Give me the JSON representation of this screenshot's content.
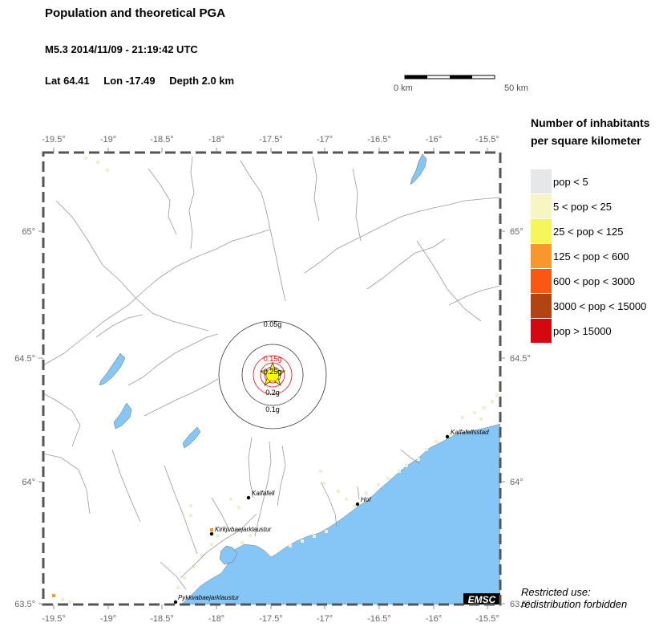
{
  "header": {
    "title": "Population and theoretical PGA",
    "event": "M5.3  2014/11/09 - 21:19:42 UTC",
    "lat": "Lat 64.41",
    "lon": "Lon -17.49",
    "depth": "Depth  2.0 km"
  },
  "scale_bar": {
    "left_label": "0 km",
    "right_label": "50 km"
  },
  "legend": {
    "title_line1": "Number of inhabitants",
    "title_line2": "per square kilometer",
    "items": [
      {
        "label": "pop < 5",
        "color": "#e5e7e8"
      },
      {
        "label": "5 < pop < 25",
        "color": "#f7f6c3"
      },
      {
        "label": "25 < pop < 125",
        "color": "#f6f65a"
      },
      {
        "label": "125 < pop < 600",
        "color": "#f7972e"
      },
      {
        "label": "600 < pop < 3000",
        "color": "#f95713"
      },
      {
        "label": "3000 < pop < 15000",
        "color": "#b24313"
      },
      {
        "label": "pop > 15000",
        "color": "#d3090f"
      }
    ]
  },
  "map": {
    "lon_ticks": [
      "-19.5°",
      "-19°",
      "-18.5°",
      "-18°",
      "-17.5°",
      "-17°",
      "-16.5°",
      "-16°",
      "-15.5°"
    ],
    "lat_ticks": [
      "65°",
      "64.5°",
      "64°",
      "63.5°"
    ],
    "epicenter": {
      "lat": 64.41,
      "lon": -17.49
    },
    "pga_contours": [
      "0.05g",
      "0.15g",
      "0.25g",
      "0.2g",
      "0.1g"
    ],
    "towns": [
      "Kalfafellsstad",
      "Kalfafell",
      "Hof",
      "Kirkjubaejarklaustur",
      "Pykkvabaejarklaustur"
    ],
    "colors": {
      "sea": "#86c6f7",
      "lake": "#86c6f7",
      "pga_high": "#ff0000"
    },
    "credit": "EMSC"
  },
  "restriction": {
    "line1": "Restricted use:",
    "line2": "redistribution forbidden"
  }
}
